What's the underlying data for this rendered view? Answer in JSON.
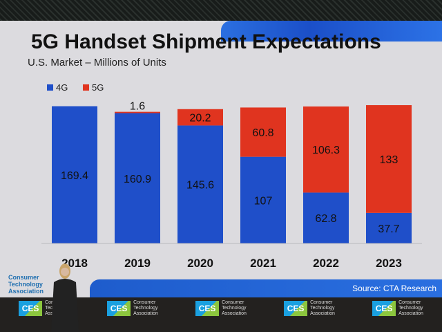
{
  "chart_data": {
    "type": "bar",
    "stacked": true,
    "title": "5G Handset Shipment Expectations",
    "subtitle": "U.S. Market – Millions of Units",
    "categories": [
      "2018",
      "2019",
      "2020",
      "2021",
      "2022",
      "2023"
    ],
    "series": [
      {
        "name": "4G",
        "color": "#1f4fc9",
        "values": [
          169.4,
          160.9,
          145.6,
          107,
          62.8,
          37.7
        ]
      },
      {
        "name": "5G",
        "color": "#e0341f",
        "values": [
          0,
          1.6,
          20.2,
          60.8,
          106.3,
          133
        ]
      }
    ],
    "value_labels": {
      "4G": [
        "169.4",
        "160.9",
        "145.6",
        "107",
        "62.8",
        "37.7"
      ],
      "5G": [
        "",
        "1.6",
        "20.2",
        "60.8",
        "106.3",
        "133"
      ]
    },
    "legend": {
      "position": "top-left",
      "items": [
        "4G",
        "5G"
      ]
    },
    "ylim": [
      0,
      175
    ],
    "grid": false,
    "source": "Source: CTA Research"
  },
  "branding": {
    "cta_logo": [
      "Consumer",
      "Technology",
      "Association"
    ],
    "ces_badge": "CES",
    "ces_sub": [
      "Consumer",
      "Technology",
      "Association"
    ]
  }
}
